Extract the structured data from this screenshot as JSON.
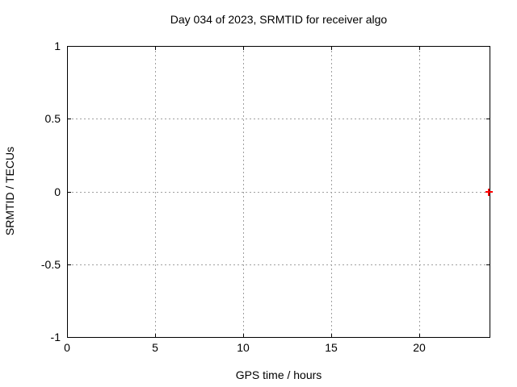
{
  "colors": {
    "marker": "#ff0000",
    "grid": "#a0a0a0",
    "axis": "#000000",
    "background": "#ffffff",
    "text": "#000000"
  },
  "chart_data": {
    "type": "scatter",
    "title": "Day 034 of 2023, SRMTID for receiver algo",
    "xlabel": "GPS time / hours",
    "ylabel": "SRMTID / TECUs",
    "xlim": [
      0,
      24
    ],
    "ylim": [
      -1,
      1
    ],
    "x_ticks": [
      0,
      5,
      10,
      15,
      20
    ],
    "y_ticks": [
      -1,
      -0.5,
      0,
      0.5,
      1
    ],
    "grid": true,
    "grid_style": "dotted",
    "legend_position": "none",
    "series": [
      {
        "name": "SRMTID",
        "marker": "plus",
        "color": "#ff0000",
        "points": [
          {
            "x": 23.97,
            "y": 0.0
          }
        ]
      }
    ]
  }
}
